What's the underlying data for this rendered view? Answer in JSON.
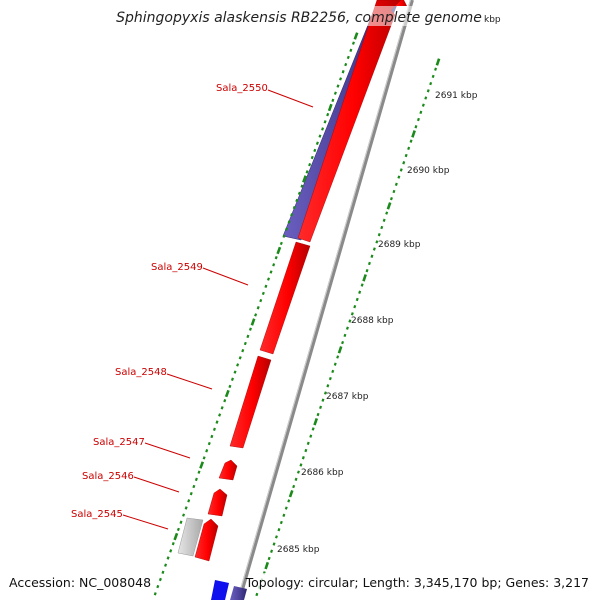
{
  "title": "Sphingopyxis alaskensis RB2256, complete genome",
  "footer": {
    "accession": "Accession: NC_008048",
    "topology": "Topology: circular; Length: 3,345,170 bp; Genes: 3,217"
  },
  "colors": {
    "forward_gene": "#ff0000",
    "reverse_gene": "#4a3f96",
    "reverse_gene_bright": "#1010ee",
    "pseudo_gene": "#c8c8c8",
    "backbone": "#888888",
    "tick": "#1a8a1a",
    "label": "#cc0000"
  },
  "kbp_labels": [
    "2685 kbp",
    "2686 kbp",
    "2687 kbp",
    "2688 kbp",
    "2689 kbp",
    "2690 kbp",
    "2691 kbp",
    "kbp"
  ],
  "gene_labels": [
    "Sala_2545",
    "Sala_2546",
    "Sala_2547",
    "Sala_2548",
    "Sala_2549",
    "Sala_2550"
  ]
}
